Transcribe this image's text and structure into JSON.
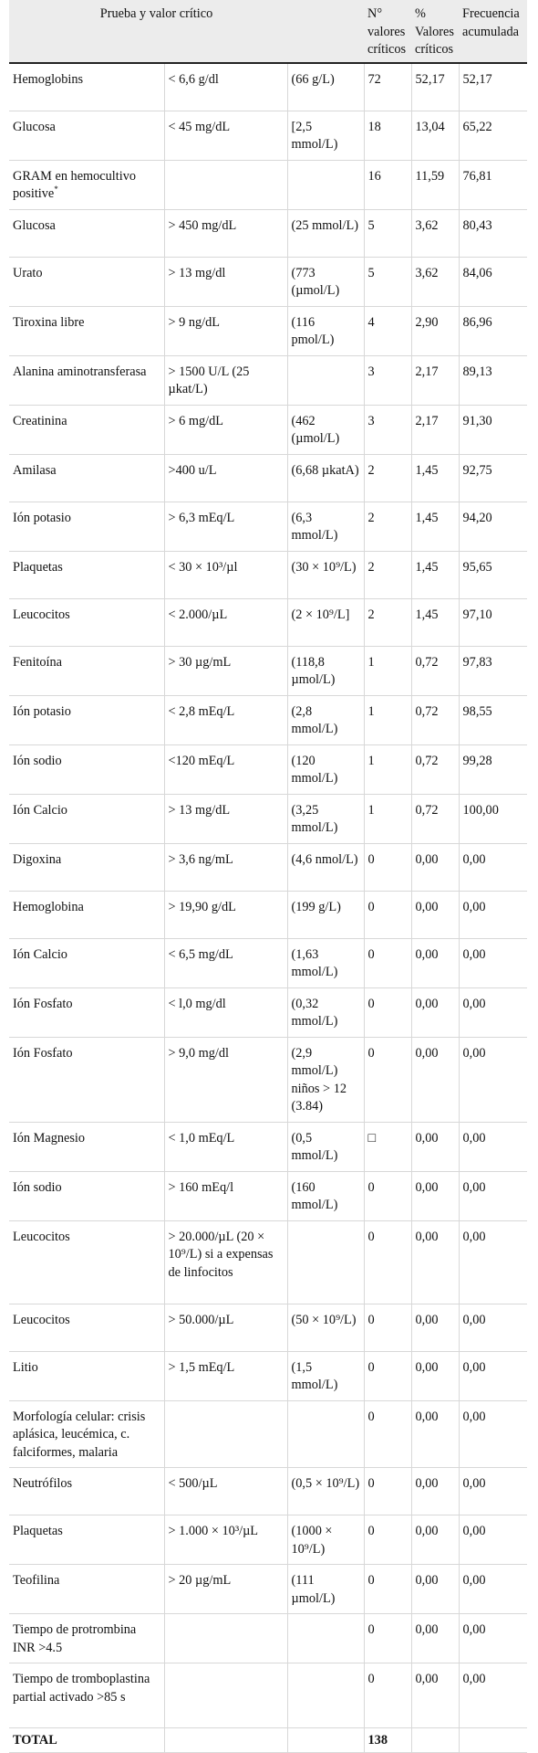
{
  "header": {
    "test_value": "Prueba y valor crítico",
    "count": "N° valores críticos",
    "percent": "% Valores críticos",
    "cumulative": "Frecuencia acumulada"
  },
  "rows": [
    {
      "test": "Hemoglobins",
      "limit": "< 6,6 g/dl",
      "si": "(66 g/L)",
      "n": "72",
      "pct": "52,17",
      "cum": "52,17"
    },
    {
      "test": "Glucosa",
      "limit": "< 45 mg/dL",
      "si": "[2,5 mmol/L)",
      "n": "18",
      "pct": "13,04",
      "cum": "65,22"
    },
    {
      "test": "GRAM en hemocultivo positive",
      "footnote": "*",
      "limit": "",
      "si": "",
      "n": "16",
      "pct": "11,59",
      "cum": "76,81"
    },
    {
      "test": "Glucosa",
      "limit": "> 450 mg/dL",
      "si": "(25 mmol/L)",
      "n": "5",
      "pct": "3,62",
      "cum": "80,43"
    },
    {
      "test": "Urato",
      "limit": "> 13 mg/dl",
      "si": "(773 (µmol/L)",
      "n": "5",
      "pct": "3,62",
      "cum": "84,06"
    },
    {
      "test": "Tiroxina libre",
      "limit": "> 9 ng/dL",
      "si": "(116 pmol/L)",
      "n": "4",
      "pct": "2,90",
      "cum": "86,96"
    },
    {
      "test": "Alanina aminotransferasa",
      "limit": "> 1500 U/L (25 µkat/L)",
      "si": "",
      "n": "3",
      "pct": "2,17",
      "cum": "89,13"
    },
    {
      "test": "Creatinina",
      "limit": "> 6 mg/dL",
      "si": "(462 (µmol/L)",
      "n": "3",
      "pct": "2,17",
      "cum": "91,30"
    },
    {
      "test": "Amilasa",
      "limit": ">400 u/L",
      "si": "(6,68 µkatA)",
      "n": "2",
      "pct": "1,45",
      "cum": "92,75"
    },
    {
      "test": "Ión potasio",
      "limit": "> 6,3 mEq/L",
      "si": "(6,3 mmol/L)",
      "n": "2",
      "pct": "1,45",
      "cum": "94,20"
    },
    {
      "test": "Plaquetas",
      "limit": "< 30 × 10³/µl",
      "si": "(30 × 10⁹/L)",
      "n": "2",
      "pct": "1,45",
      "cum": "95,65"
    },
    {
      "test": "Leucocitos",
      "limit": "< 2.000/µL",
      "si": "(2 × 10⁹/L]",
      "n": "2",
      "pct": "1,45",
      "cum": "97,10"
    },
    {
      "test": "Fenitoína",
      "limit": "> 30 µg/mL",
      "si": "(118,8 µmol/L)",
      "n": "1",
      "pct": "0,72",
      "cum": "97,83"
    },
    {
      "test": "Ión potasio",
      "limit": "< 2,8 mEq/L",
      "si": "(2,8 mmol/L)",
      "n": "1",
      "pct": "0,72",
      "cum": "98,55"
    },
    {
      "test": "Ión sodio",
      "limit": "<120 mEq/L",
      "si": "(120 mmol/L)",
      "n": "1",
      "pct": "0,72",
      "cum": "99,28"
    },
    {
      "test": "Ión Calcio",
      "limit": "> 13 mg/dL",
      "si": "(3,25 mmol/L)",
      "n": "1",
      "pct": "0,72",
      "cum": "100,00"
    },
    {
      "test": "Digoxina",
      "limit": "> 3,6 ng/mL",
      "si": "(4,6 nmol/L)",
      "n": "0",
      "pct": "0,00",
      "cum": "0,00"
    },
    {
      "test": "Hemoglobina",
      "limit": "> 19,90 g/dL",
      "si": "(199 g/L)",
      "n": "0",
      "pct": "0,00",
      "cum": "0,00"
    },
    {
      "test": "Ión Calcio",
      "limit": "< 6,5 mg/dL",
      "si": "(1,63 mmol/L)",
      "n": "0",
      "pct": "0,00",
      "cum": "0,00"
    },
    {
      "test": "Ión Fosfato",
      "limit": "< l,0 mg/dl",
      "si": "(0,32 mmol/L)",
      "n": "0",
      "pct": "0,00",
      "cum": "0,00"
    },
    {
      "test": "Ión Fosfato",
      "limit": "> 9,0 mg/dl",
      "si": "(2,9 mmol/L) niños > 12 (3.84)",
      "n": "0",
      "pct": "0,00",
      "cum": "0,00"
    },
    {
      "test": "Ión Magnesio",
      "limit": "< 1,0 mEq/L",
      "si": "(0,5 mmol/L)",
      "n": "□",
      "pct": "0,00",
      "cum": "0,00"
    },
    {
      "test": "Ión sodio",
      "limit": "> 160 mEq/l",
      "si": "(160 mmol/L)",
      "n": "0",
      "pct": "0,00",
      "cum": "0,00"
    },
    {
      "test": "Leucocitos",
      "limit": "> 20.000/µL (20 × 10⁹/L) si a expensas de linfocitos",
      "si": "",
      "n": "0",
      "pct": "0,00",
      "cum": "0,00"
    },
    {
      "test": "Leucocitos",
      "limit": "> 50.000/µL",
      "si": "(50 × 10⁹/L)",
      "n": "0",
      "pct": "0,00",
      "cum": "0,00"
    },
    {
      "test": "Litio",
      "limit": "> 1,5 mEq/L",
      "si": "(1,5 mmol/L)",
      "n": "0",
      "pct": "0,00",
      "cum": "0,00"
    },
    {
      "test": "Morfología celular: crisis aplásica, leucémica, c. falciformes, malaria",
      "limit": "",
      "si": "",
      "n": "0",
      "pct": "0,00",
      "cum": "0,00"
    },
    {
      "test": "Neutrófilos",
      "limit": "< 500/µL",
      "si": "(0,5 × 10⁹/L)",
      "n": "0",
      "pct": "0,00",
      "cum": "0,00"
    },
    {
      "test": "Plaquetas",
      "limit": "> 1.000 × 10³/µL",
      "si": "(1000 × 10⁹/L)",
      "n": "0",
      "pct": "0,00",
      "cum": "0,00"
    },
    {
      "test": "Teofilina",
      "limit": "> 20 µg/mL",
      "si": "(111 µmol/L)",
      "n": "0",
      "pct": "0,00",
      "cum": "0,00"
    },
    {
      "test": "Tiempo de protrombina INR >4.5",
      "limit": "",
      "si": "",
      "n": "0",
      "pct": "0,00",
      "cum": "0,00"
    },
    {
      "test": "Tiempo de tromboplastina partial activado >85 s",
      "limit": "",
      "si": "",
      "n": "0",
      "pct": "0,00",
      "cum": "0,00"
    }
  ],
  "total": {
    "label": "TOTAL",
    "n": "138"
  }
}
